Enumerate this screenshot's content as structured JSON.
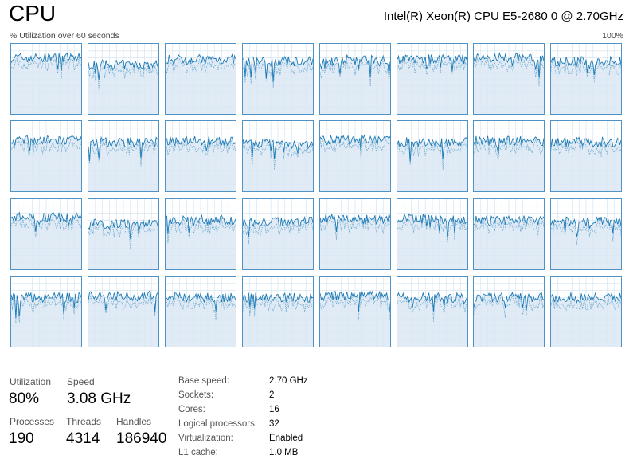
{
  "header": {
    "title": "CPU",
    "model": "Intel(R) Xeon(R) CPU E5-2680 0 @ 2.70GHz",
    "axis_left_label": "% Utilization over 60 seconds",
    "axis_right_label": "100%"
  },
  "graphs": {
    "count": 32,
    "line_color": "#1d7ab5",
    "fill_color": "#dbe8f3",
    "grid_color": "#cfe2ee",
    "border_color": "#4f93c6",
    "levels": [
      0.8,
      0.7,
      0.78,
      0.75,
      0.78,
      0.78,
      0.8,
      0.75,
      0.72,
      0.7,
      0.72,
      0.68,
      0.73,
      0.7,
      0.72,
      0.7,
      0.75,
      0.65,
      0.7,
      0.68,
      0.72,
      0.72,
      0.7,
      0.68,
      0.7,
      0.72,
      0.7,
      0.7,
      0.72,
      0.7,
      0.7,
      0.7
    ]
  },
  "stats": {
    "utilization": {
      "label": "Utilization",
      "value": "80%"
    },
    "speed": {
      "label": "Speed",
      "value": "3.08 GHz"
    },
    "processes": {
      "label": "Processes",
      "value": "190"
    },
    "threads": {
      "label": "Threads",
      "value": "4314"
    },
    "handles": {
      "label": "Handles",
      "value": "186940"
    }
  },
  "details": [
    {
      "label": "Base speed:",
      "value": "2.70 GHz"
    },
    {
      "label": "Sockets:",
      "value": "2"
    },
    {
      "label": "Cores:",
      "value": "16"
    },
    {
      "label": "Logical processors:",
      "value": "32"
    },
    {
      "label": "Virtualization:",
      "value": "Enabled"
    },
    {
      "label": "L1 cache:",
      "value": "1.0 MB"
    }
  ]
}
